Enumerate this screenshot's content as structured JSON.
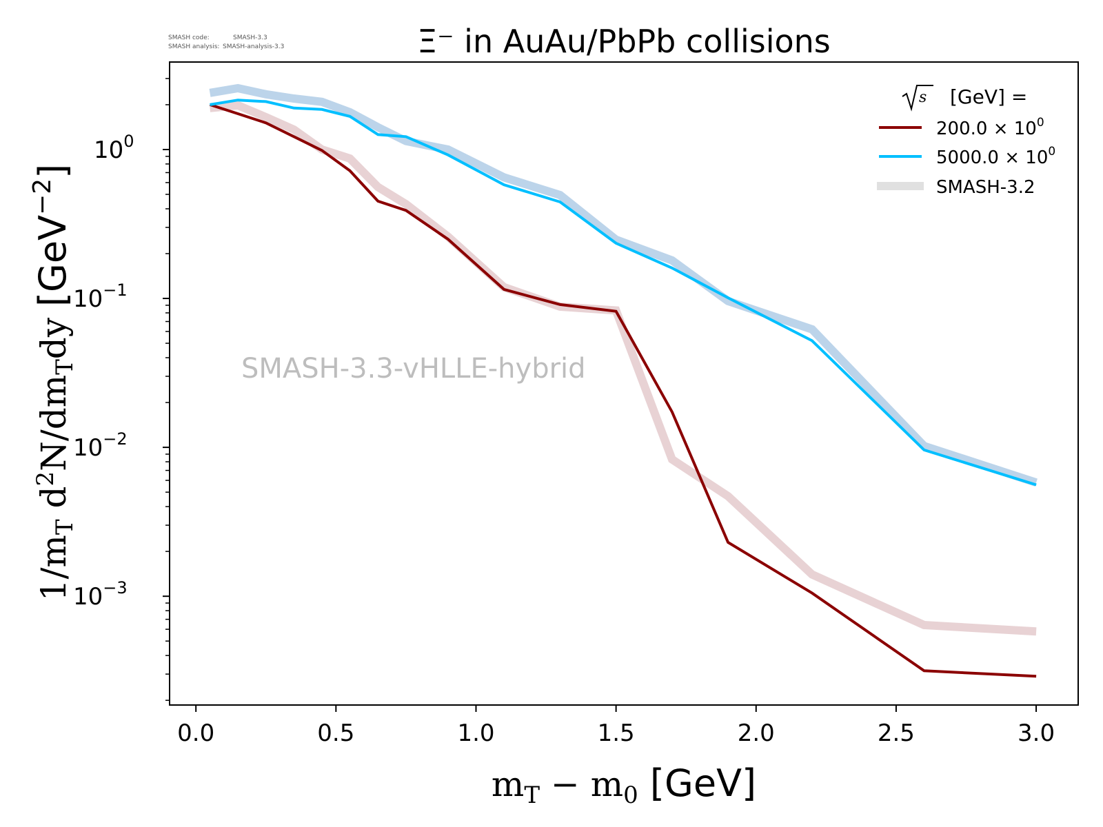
{
  "meta": {
    "code_label": "SMASH code:",
    "code_value": "SMASH-3.3",
    "analysis_label": "SMASH analysis:",
    "analysis_value": "SMASH-analysis-3.3"
  },
  "watermark": "SMASH-3.3-vHLLE-hybrid",
  "chart_data": {
    "type": "line",
    "title": "Ξ⁻ in AuAu/PbPb collisions",
    "xlabel": "m_T − m_0 [GeV]",
    "ylabel": "1/m_T d²N/dm_T dy [GeV⁻²]",
    "xscale": "linear",
    "yscale": "log",
    "xlim": [
      -0.094,
      3.15
    ],
    "ylim": [
      0.000186,
      3.87
    ],
    "grid": false,
    "x_ticks": [
      {
        "value": 0.0,
        "label": "0.0"
      },
      {
        "value": 0.5,
        "label": "0.5"
      },
      {
        "value": 1.0,
        "label": "1.0"
      },
      {
        "value": 1.5,
        "label": "1.5"
      },
      {
        "value": 2.0,
        "label": "2.0"
      },
      {
        "value": 2.5,
        "label": "2.5"
      },
      {
        "value": 3.0,
        "label": "3.0"
      }
    ],
    "y_ticks": [
      {
        "value": 1,
        "base": "10",
        "exp": "0"
      },
      {
        "value": 0.1,
        "base": "10",
        "exp": "−1"
      },
      {
        "value": 0.01,
        "base": "10",
        "exp": "−2"
      },
      {
        "value": 0.001,
        "base": "10",
        "exp": "−3"
      }
    ],
    "legend": {
      "placement": "top-right",
      "title_prefix": "s",
      "title_suffix": "[GeV] =",
      "entries": [
        {
          "label": "200.0 × 10",
          "sup": "0",
          "series": "200.0"
        },
        {
          "label": "5000.0 × 10",
          "sup": "0",
          "series": "5000.0"
        },
        {
          "label": "SMASH-3.2",
          "sup": "",
          "series": "ref"
        }
      ]
    },
    "x": [
      0.05,
      0.15,
      0.25,
      0.35,
      0.45,
      0.55,
      0.65,
      0.75,
      0.9,
      1.1,
      1.3,
      1.5,
      1.7,
      1.9,
      2.2,
      2.6,
      3.0
    ],
    "series": [
      {
        "name": "SMASH-3.2 (200.0)",
        "role": "reference",
        "color": "#e8d2d4",
        "values": [
          1.9,
          1.98,
          1.65,
          1.36,
          1.0,
          0.87,
          0.56,
          0.43,
          0.26,
          0.119,
          0.088,
          0.083,
          0.0083,
          0.0047,
          0.0014,
          0.00064,
          0.00058
        ]
      },
      {
        "name": "SMASH-3.2 (5000.0)",
        "role": "reference",
        "color": "#bcd4ea",
        "values": [
          2.4,
          2.58,
          2.35,
          2.2,
          2.09,
          1.78,
          1.41,
          1.14,
          1.0,
          0.65,
          0.495,
          0.248,
          0.18,
          0.096,
          0.062,
          0.0102,
          0.0058
        ]
      },
      {
        "name": "200.0 × 10^0",
        "role": "main",
        "color": "#8b0000",
        "values": [
          2.0,
          1.74,
          1.51,
          1.22,
          0.986,
          0.72,
          0.45,
          0.39,
          0.25,
          0.115,
          0.091,
          0.082,
          0.0173,
          0.0023,
          0.00105,
          0.000316,
          0.00029
        ]
      },
      {
        "name": "5000.0 × 10^0",
        "role": "main",
        "color": "#00bfff",
        "values": [
          2.0,
          2.15,
          2.1,
          1.9,
          1.86,
          1.67,
          1.26,
          1.22,
          0.92,
          0.58,
          0.445,
          0.235,
          0.16,
          0.101,
          0.052,
          0.0096,
          0.0056
        ]
      }
    ],
    "legend_ref_color": "#e0e0e0"
  }
}
